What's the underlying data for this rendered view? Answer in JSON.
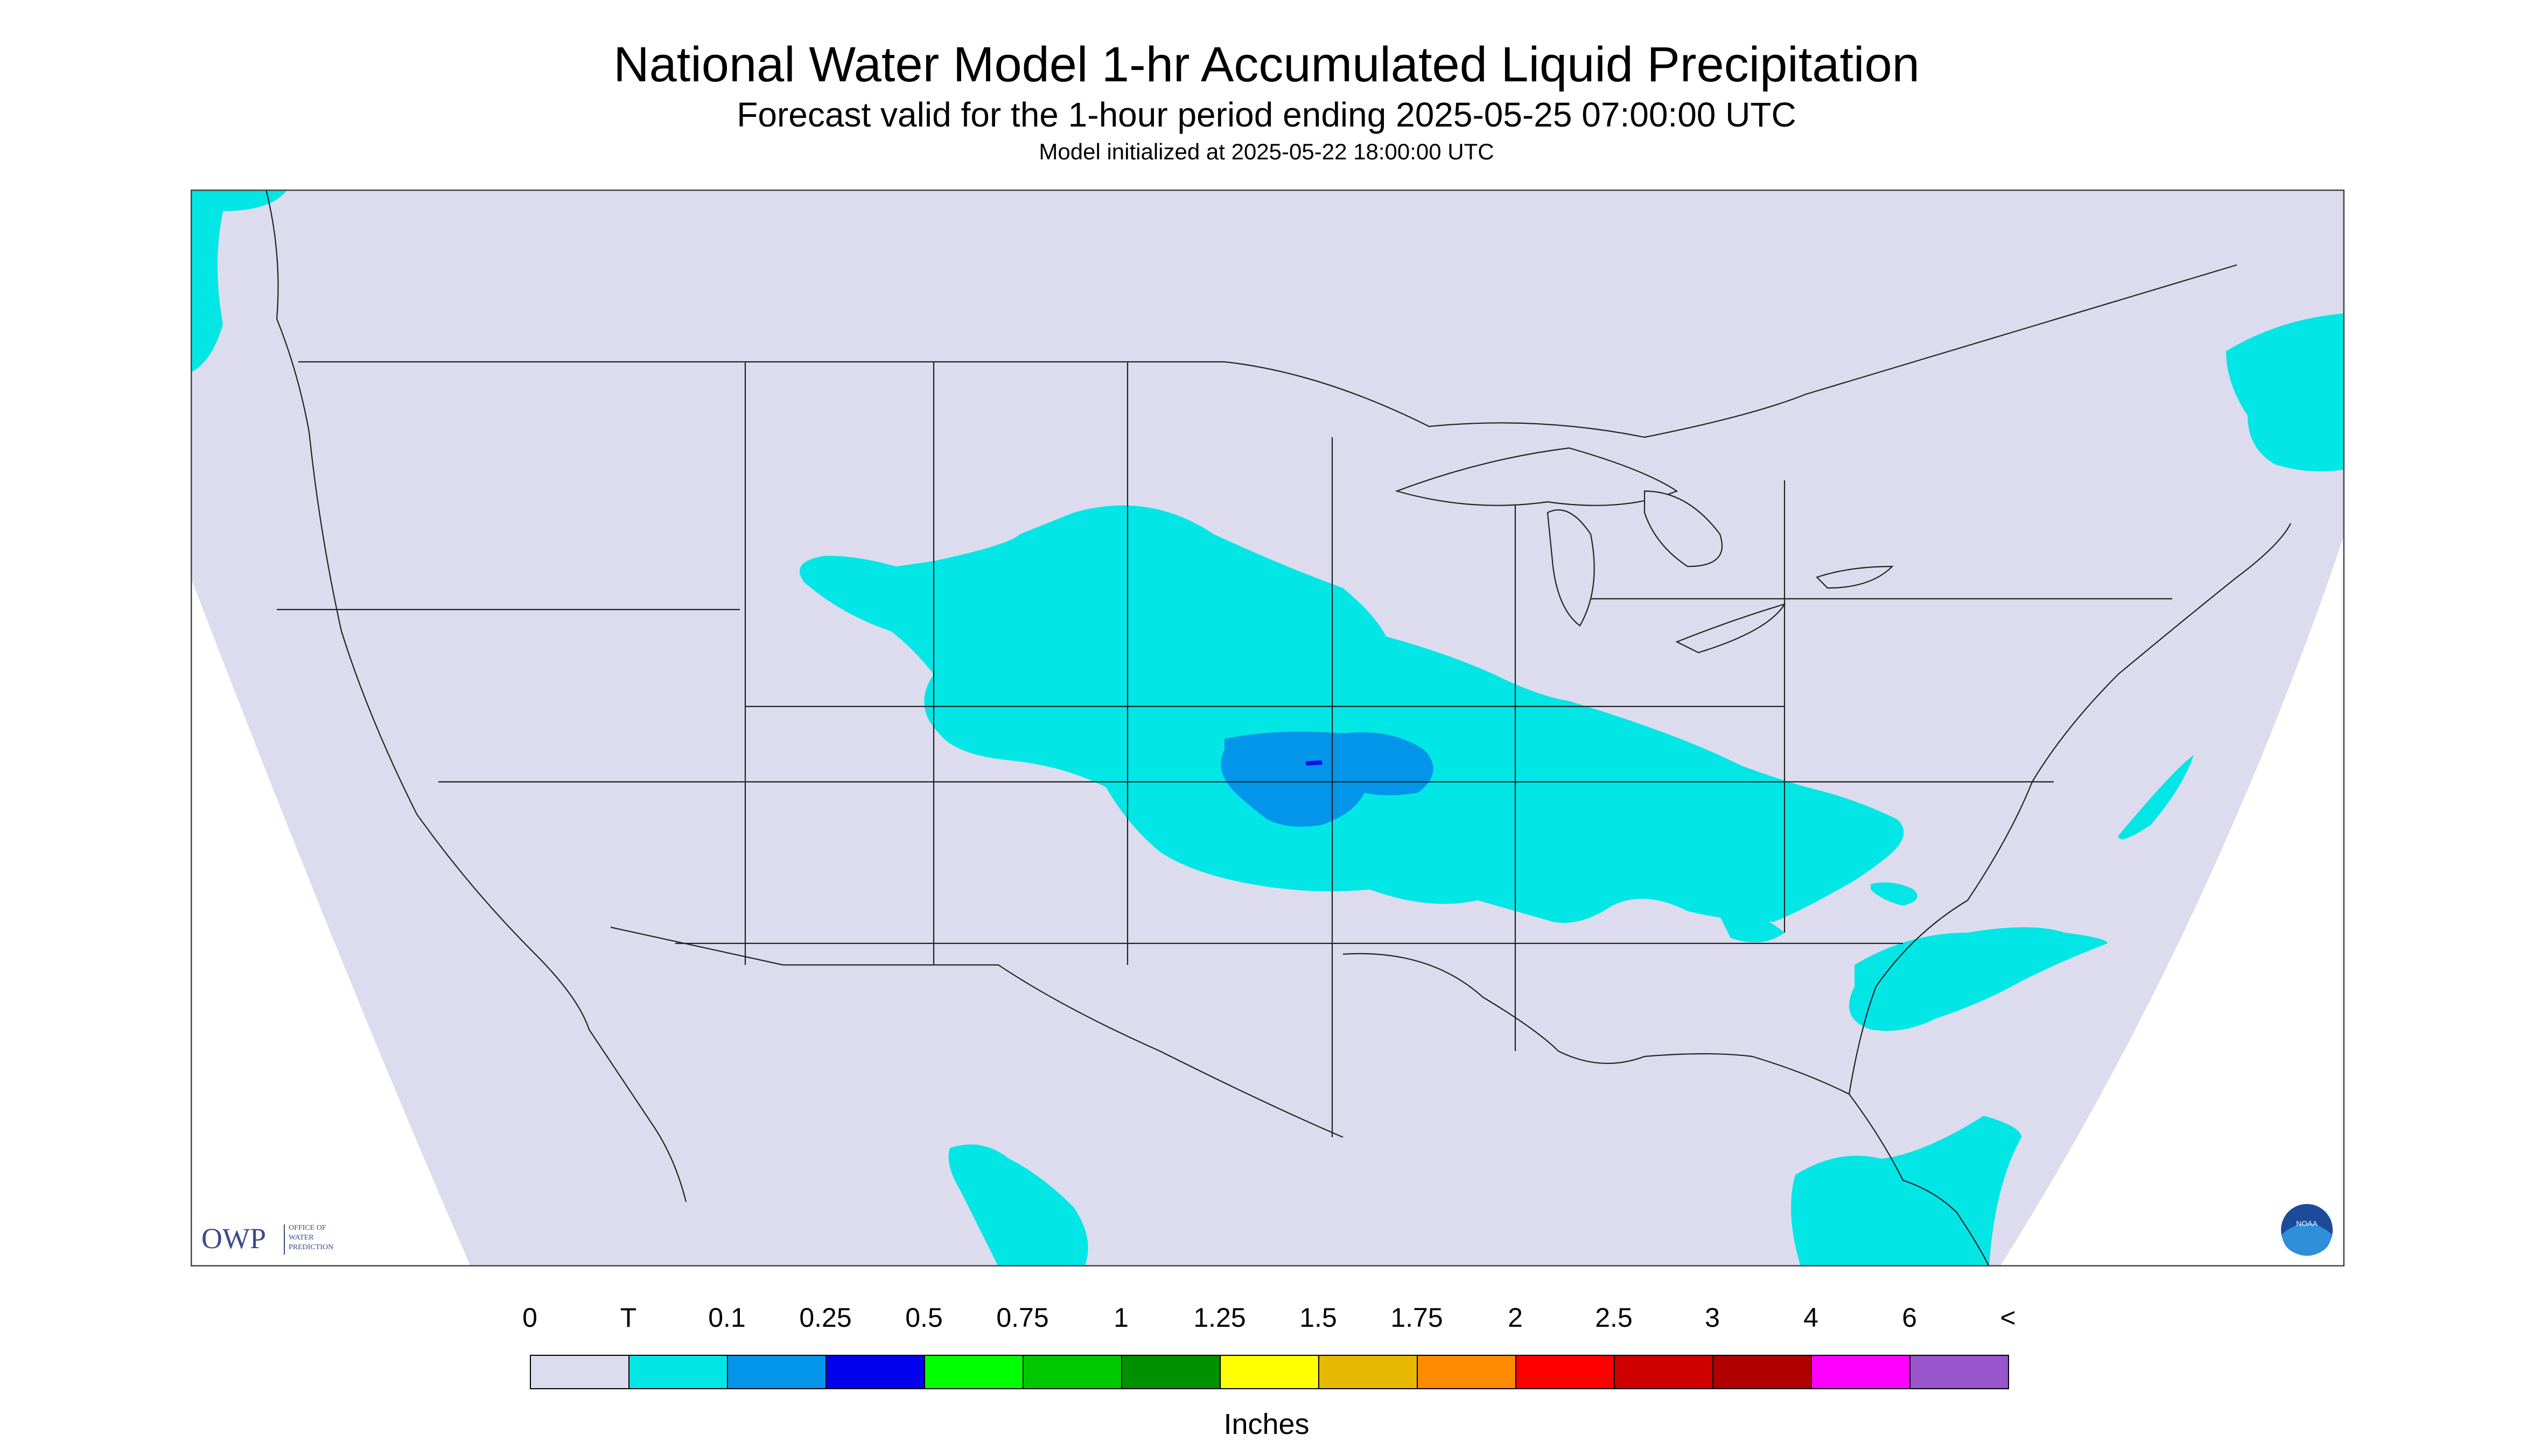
{
  "header": {
    "title": "National Water Model 1-hr Accumulated Liquid Precipitation",
    "subtitle": "Forecast valid for the 1-hour period ending 2025-05-25 07:00:00 UTC",
    "init": "Model initialized at 2025-05-22 18:00:00 UTC"
  },
  "map": {
    "region": "CONUS",
    "background_color": "#dcdcee",
    "outside_color": "#ffffff",
    "boundary_color": "#222222",
    "trace_color": "#03e6e6",
    "light_color": "#0295ea",
    "moderate_color": "#1212e8"
  },
  "logos": {
    "owp_text": "OWP",
    "owp_subtext": [
      "OFFICE OF",
      "WATER",
      "PREDICTION"
    ],
    "noaa_text": "NOAA"
  },
  "legend": {
    "labels": [
      "0",
      "T",
      "0.1",
      "0.25",
      "0.5",
      "0.75",
      "1",
      "1.25",
      "1.5",
      "1.75",
      "2",
      "2.5",
      "3",
      "4",
      "6",
      "<"
    ],
    "colors": [
      "#dcdcee",
      "#03e6e6",
      "#0295ea",
      "#0202ee",
      "#00ff00",
      "#00c800",
      "#009000",
      "#ffff00",
      "#e6b800",
      "#ff8c00",
      "#ff0000",
      "#d00000",
      "#b00000",
      "#ff00ff",
      "#9955cc"
    ],
    "units": "Inches"
  }
}
